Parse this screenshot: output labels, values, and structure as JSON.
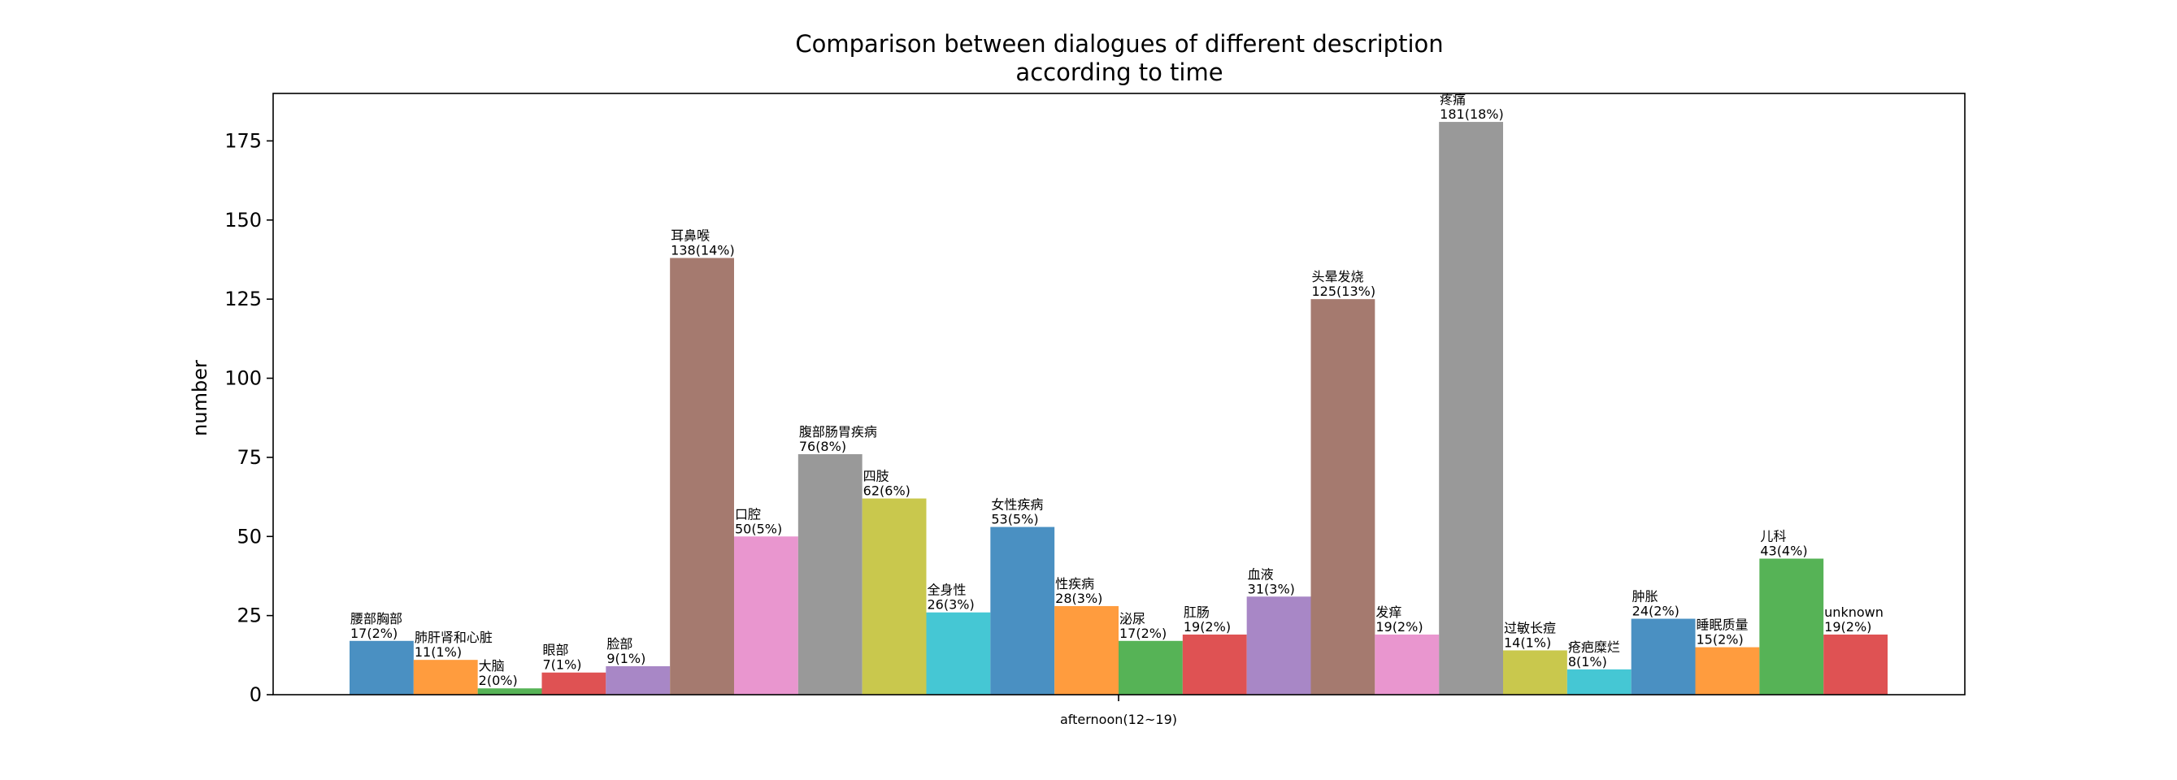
{
  "chart_data": {
    "type": "bar",
    "title_lines": [
      "Comparison between dialogues of different description",
      "according to time"
    ],
    "xlabel": "",
    "ylabel": "number",
    "ylim": [
      0,
      190
    ],
    "yticks": [
      0,
      25,
      50,
      75,
      100,
      125,
      150,
      175
    ],
    "categories": [
      "afternoon(12~19)"
    ],
    "grid": false,
    "series": [
      {
        "name": "腰部胸部",
        "values": [
          17
        ],
        "label": "17(2%)",
        "color": "#4a90c2"
      },
      {
        "name": "肺肝肾和心脏",
        "values": [
          11
        ],
        "label": "11(1%)",
        "color": "#ff9c3e"
      },
      {
        "name": "大脑",
        "values": [
          2
        ],
        "label": "2(0%)",
        "color": "#56b356"
      },
      {
        "name": "眼部",
        "values": [
          7
        ],
        "label": "7(1%)",
        "color": "#df5253"
      },
      {
        "name": "脸部",
        "values": [
          9
        ],
        "label": "9(1%)",
        "color": "#a887c6"
      },
      {
        "name": "耳鼻喉",
        "values": [
          138
        ],
        "label": "138(14%)",
        "color": "#a57a6f"
      },
      {
        "name": "口腔",
        "values": [
          50
        ],
        "label": "50(5%)",
        "color": "#e996cf"
      },
      {
        "name": "腹部肠胃疾病",
        "values": [
          76
        ],
        "label": "76(8%)",
        "color": "#999999"
      },
      {
        "name": "四肢",
        "values": [
          62
        ],
        "label": "62(6%)",
        "color": "#c9c84d"
      },
      {
        "name": "全身性",
        "values": [
          26
        ],
        "label": "26(3%)",
        "color": "#45c7d4"
      },
      {
        "name": "女性疾病",
        "values": [
          53
        ],
        "label": "53(5%)",
        "color": "#4a90c2"
      },
      {
        "name": "性疾病",
        "values": [
          28
        ],
        "label": "28(3%)",
        "color": "#ff9c3e"
      },
      {
        "name": "泌尿",
        "values": [
          17
        ],
        "label": "17(2%)",
        "color": "#56b356"
      },
      {
        "name": "肛肠",
        "values": [
          19
        ],
        "label": "19(2%)",
        "color": "#df5253"
      },
      {
        "name": "血液",
        "values": [
          31
        ],
        "label": "31(3%)",
        "color": "#a887c6"
      },
      {
        "name": "头晕发烧",
        "values": [
          125
        ],
        "label": "125(13%)",
        "color": "#a57a6f"
      },
      {
        "name": "发痒",
        "values": [
          19
        ],
        "label": "19(2%)",
        "color": "#e996cf"
      },
      {
        "name": "疼痛",
        "values": [
          181
        ],
        "label": "181(18%)",
        "color": "#999999"
      },
      {
        "name": "过敏长痘",
        "values": [
          14
        ],
        "label": "14(1%)",
        "color": "#c9c84d"
      },
      {
        "name": "疮疤糜烂",
        "values": [
          8
        ],
        "label": "8(1%)",
        "color": "#45c7d4"
      },
      {
        "name": "肿胀",
        "values": [
          24
        ],
        "label": "24(2%)",
        "color": "#4a90c2"
      },
      {
        "name": "睡眠质量",
        "values": [
          15
        ],
        "label": "15(2%)",
        "color": "#ff9c3e"
      },
      {
        "name": "儿科",
        "values": [
          43
        ],
        "label": "43(4%)",
        "color": "#56b356"
      },
      {
        "name": "unknown",
        "values": [
          19
        ],
        "label": "19(2%)",
        "color": "#df5253"
      }
    ]
  }
}
